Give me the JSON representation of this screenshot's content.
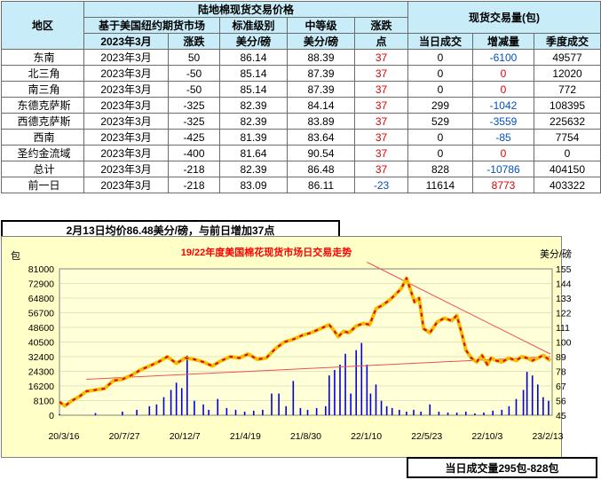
{
  "table": {
    "group_price": "陆地棉现货交易价格",
    "group_volume": "现货交易量(包)",
    "sub_futures": "基于美国纽约期货市场",
    "sub_std": "标准级别",
    "sub_mid": "中等级",
    "sub_change": "涨跌",
    "col_region": "地区",
    "col_month": "2023年3月",
    "col_change": "涨跌",
    "col_std": "美分/磅",
    "col_mid": "美分/磅",
    "col_point": "点",
    "col_today": "当日成交",
    "col_delta": "增减量",
    "col_season": "季度成交",
    "rows": [
      {
        "region": "东南",
        "month": "2023年3月",
        "change": "50",
        "std": "86.14",
        "mid": "88.39",
        "pt": "37",
        "today": "0",
        "delta": "-6100",
        "season": "49577"
      },
      {
        "region": "北三角",
        "month": "2023年3月",
        "change": "-50",
        "std": "85.14",
        "mid": "87.39",
        "pt": "37",
        "today": "0",
        "delta": "0",
        "season": "12020"
      },
      {
        "region": "南三角",
        "month": "2023年3月",
        "change": "-50",
        "std": "85.14",
        "mid": "87.39",
        "pt": "37",
        "today": "0",
        "delta": "0",
        "season": "772"
      },
      {
        "region": "东德克萨斯",
        "month": "2023年3月",
        "change": "-325",
        "std": "82.39",
        "mid": "84.14",
        "pt": "37",
        "today": "299",
        "delta": "-1042",
        "season": "108395"
      },
      {
        "region": "西德克萨斯",
        "month": "2023年3月",
        "change": "-325",
        "std": "82.39",
        "mid": "83.89",
        "pt": "37",
        "today": "529",
        "delta": "-3559",
        "season": "225632"
      },
      {
        "region": "西南",
        "month": "2023年3月",
        "change": "-425",
        "std": "81.39",
        "mid": "83.64",
        "pt": "37",
        "today": "0",
        "delta": "-85",
        "season": "7754"
      },
      {
        "region": "圣约金流域",
        "month": "2023年3月",
        "change": "-400",
        "std": "81.64",
        "mid": "90.54",
        "pt": "37",
        "today": "0",
        "delta": "0",
        "season": "0"
      },
      {
        "region": "总计",
        "month": "2023年3月",
        "change": "-218",
        "std": "82.39",
        "mid": "86.48",
        "pt": "37",
        "today": "828",
        "delta": "-10786",
        "season": "404150"
      },
      {
        "region": "前一日",
        "month": "2023年3月",
        "change": "-218",
        "std": "83.09",
        "mid": "86.11",
        "pt": "-23",
        "today": "11614",
        "delta": "8773",
        "season": "403322"
      }
    ]
  },
  "note_top": "2月13日均价86.48美分/磅，与前日增加37点",
  "note_bottom": "当日成交量295包-828包",
  "colors": {
    "header_bg": "#c8ecf8",
    "plot_bg": "#ffffc8",
    "bars": "#0000e0",
    "price_line": "#f0c000",
    "price_dash": "#e00000",
    "trend": "#f05050",
    "title": "#ff0000"
  },
  "chart_data": {
    "type": "bar+line",
    "title": "19/22年度美国棉花现货市场日交易走势",
    "left_unit": "包",
    "right_unit": "美分/磅",
    "left_ticks": [
      "81000",
      "72900",
      "64800",
      "56700",
      "48600",
      "40500",
      "32400",
      "24300",
      "16200",
      "8100",
      "0"
    ],
    "left_max": 81000,
    "right_ticks": [
      "155",
      "144",
      "133",
      "122",
      "111",
      "100",
      "89",
      "78",
      "67",
      "56",
      "45"
    ],
    "right_range": [
      45,
      155
    ],
    "x_labels": [
      "20/3/16",
      "20/7/27",
      "20/12/7",
      "21/4/19",
      "21/8/30",
      "22/1/10",
      "22/5/23",
      "22/10/3",
      "23/2/13"
    ],
    "price_series": [
      [
        0,
        55
      ],
      [
        6,
        52
      ],
      [
        14,
        56
      ],
      [
        22,
        59
      ],
      [
        30,
        63
      ],
      [
        40,
        64
      ],
      [
        50,
        65
      ],
      [
        60,
        71
      ],
      [
        70,
        72
      ],
      [
        80,
        75
      ],
      [
        90,
        79
      ],
      [
        100,
        82
      ],
      [
        110,
        85
      ],
      [
        120,
        89
      ],
      [
        130,
        84
      ],
      [
        140,
        88
      ],
      [
        150,
        87
      ],
      [
        160,
        85
      ],
      [
        170,
        82
      ],
      [
        180,
        86
      ],
      [
        190,
        89
      ],
      [
        200,
        88
      ],
      [
        210,
        91
      ],
      [
        220,
        87
      ],
      [
        230,
        88
      ],
      [
        240,
        95
      ],
      [
        250,
        100
      ],
      [
        260,
        102
      ],
      [
        270,
        105
      ],
      [
        280,
        107
      ],
      [
        290,
        110
      ],
      [
        300,
        113
      ],
      [
        305,
        109
      ],
      [
        310,
        104
      ],
      [
        316,
        108
      ],
      [
        322,
        107
      ],
      [
        330,
        112
      ],
      [
        338,
        114
      ],
      [
        345,
        113
      ],
      [
        352,
        125
      ],
      [
        360,
        128
      ],
      [
        368,
        132
      ],
      [
        374,
        136
      ],
      [
        380,
        140
      ],
      [
        386,
        148
      ],
      [
        390,
        140
      ],
      [
        395,
        130
      ],
      [
        400,
        133
      ],
      [
        405,
        110
      ],
      [
        412,
        107
      ],
      [
        420,
        115
      ],
      [
        428,
        118
      ],
      [
        436,
        116
      ],
      [
        442,
        120
      ],
      [
        448,
        105
      ],
      [
        452,
        94
      ],
      [
        458,
        88
      ],
      [
        464,
        85
      ],
      [
        470,
        90
      ],
      [
        476,
        83
      ],
      [
        480,
        88
      ],
      [
        486,
        86
      ],
      [
        492,
        85
      ],
      [
        500,
        88
      ],
      [
        508,
        86
      ],
      [
        514,
        89
      ],
      [
        520,
        88
      ],
      [
        526,
        86
      ],
      [
        532,
        88
      ],
      [
        538,
        90
      ],
      [
        546,
        86
      ]
    ],
    "trend_lines": [
      [
        [
          30,
          72
        ],
        [
          546,
          89
        ]
      ],
      [
        [
          342,
          160
        ],
        [
          546,
          91
        ]
      ]
    ],
    "volume_bars": [
      [
        0,
        600
      ],
      [
        40,
        1200
      ],
      [
        70,
        2000
      ],
      [
        86,
        3000
      ],
      [
        100,
        5000
      ],
      [
        108,
        6000
      ],
      [
        116,
        10000
      ],
      [
        124,
        14000
      ],
      [
        130,
        18000
      ],
      [
        136,
        15000
      ],
      [
        142,
        33000
      ],
      [
        150,
        8000
      ],
      [
        160,
        6000
      ],
      [
        166,
        3000
      ],
      [
        176,
        9000
      ],
      [
        186,
        4000
      ],
      [
        196,
        3000
      ],
      [
        206,
        2000
      ],
      [
        216,
        2500
      ],
      [
        226,
        3000
      ],
      [
        236,
        12000
      ],
      [
        244,
        12000
      ],
      [
        252,
        5000
      ],
      [
        260,
        19000
      ],
      [
        268,
        4000
      ],
      [
        276,
        3000
      ],
      [
        286,
        4000
      ],
      [
        296,
        5000
      ],
      [
        300,
        22000
      ],
      [
        306,
        25000
      ],
      [
        312,
        28000
      ],
      [
        318,
        34000
      ],
      [
        324,
        12000
      ],
      [
        330,
        36000
      ],
      [
        336,
        40000
      ],
      [
        342,
        28000
      ],
      [
        346,
        12000
      ],
      [
        352,
        17000
      ],
      [
        358,
        8000
      ],
      [
        364,
        5000
      ],
      [
        370,
        4000
      ],
      [
        378,
        3000
      ],
      [
        386,
        2000
      ],
      [
        394,
        3000
      ],
      [
        402,
        2000
      ],
      [
        412,
        6000
      ],
      [
        422,
        2000
      ],
      [
        432,
        1500
      ],
      [
        442,
        1500
      ],
      [
        452,
        2000
      ],
      [
        462,
        1000
      ],
      [
        472,
        1500
      ],
      [
        482,
        2500
      ],
      [
        492,
        3000
      ],
      [
        500,
        5000
      ],
      [
        508,
        9000
      ],
      [
        516,
        14000
      ],
      [
        520,
        24000
      ],
      [
        526,
        22000
      ],
      [
        532,
        17000
      ],
      [
        538,
        10000
      ],
      [
        544,
        8000
      ]
    ]
  }
}
